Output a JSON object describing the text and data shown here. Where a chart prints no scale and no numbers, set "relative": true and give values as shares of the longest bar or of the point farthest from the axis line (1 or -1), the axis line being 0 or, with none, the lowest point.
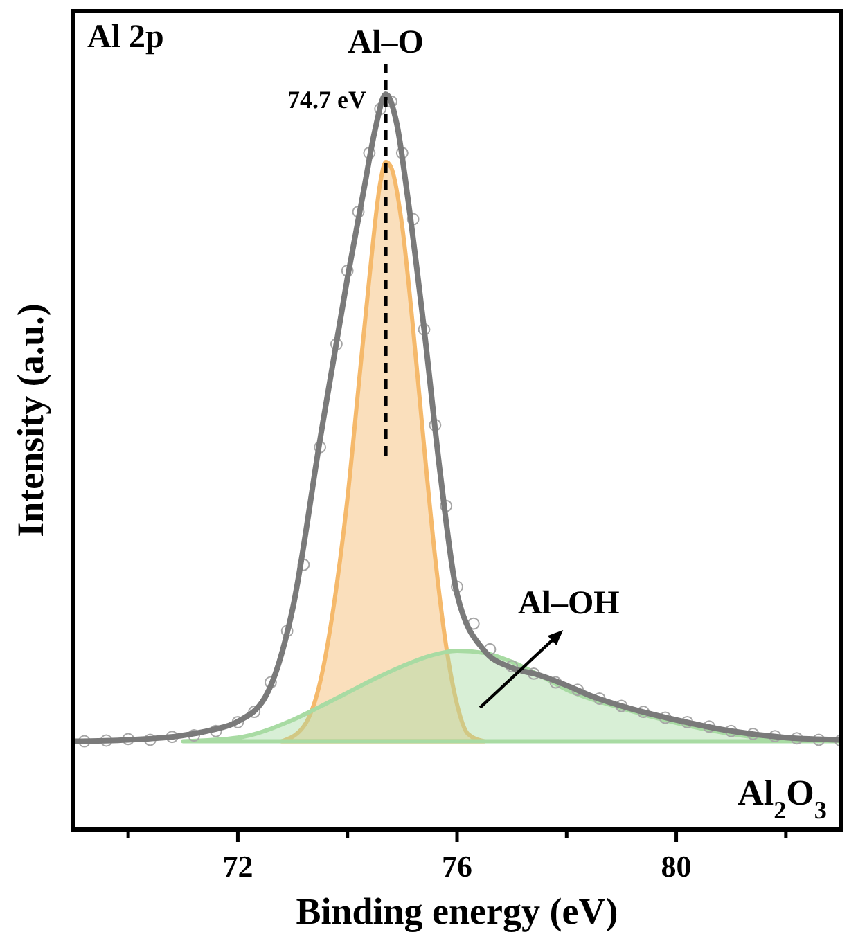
{
  "chart_data": {
    "type": "line",
    "relative": true,
    "xlabel": "Binding energy (eV)",
    "ylabel": "Intensity (a.u.)",
    "xlim": [
      69,
      83
    ],
    "xticks": [
      {
        "value": 70,
        "label": null
      },
      72,
      {
        "value": 74,
        "label": null
      },
      76,
      {
        "value": 78,
        "label": null
      },
      80,
      {
        "value": 82,
        "label": null
      }
    ],
    "tick_labels": "x",
    "series": [
      {
        "type": "area",
        "color": "#f5b96b",
        "x": [
          72.8,
          73.2,
          73.5,
          73.8,
          74,
          74.2,
          74.4,
          74.6,
          74.7,
          74.8,
          75,
          75.2,
          75.4,
          75.6,
          75.8,
          76,
          76.2,
          76.5
        ],
        "values": [
          0.12,
          0.14,
          0.2,
          0.33,
          0.45,
          0.6,
          0.75,
          0.88,
          0.908,
          0.9,
          0.82,
          0.68,
          0.52,
          0.37,
          0.25,
          0.17,
          0.13,
          0.12
        ]
      },
      {
        "type": "area",
        "color": "#a8dba3",
        "x": [
          71,
          72,
          73,
          73.5,
          74,
          74.5,
          75,
          75.5,
          76,
          76.5,
          77,
          77.5,
          78,
          79,
          80,
          81,
          82,
          83
        ],
        "values": [
          0.12,
          0.125,
          0.149,
          0.167,
          0.186,
          0.205,
          0.222,
          0.236,
          0.243,
          0.24,
          0.228,
          0.21,
          0.19,
          0.165,
          0.145,
          0.13,
          0.122,
          0.12
        ]
      },
      {
        "type": "scatter",
        "color": "#a6a6a6",
        "marker": "circle",
        "x": [
          69.2,
          69.6,
          70,
          70.4,
          70.8,
          71.2,
          71.6,
          72,
          72.3,
          72.6,
          72.9,
          73.2,
          73.5,
          73.8,
          74,
          74.2,
          74.4,
          74.6,
          74.8,
          75,
          75.2,
          75.4,
          75.6,
          75.8,
          76,
          76.3,
          76.6,
          77,
          77.4,
          77.8,
          78.2,
          78.6,
          79,
          79.4,
          79.8,
          80.2,
          80.6,
          81,
          81.4,
          81.8,
          82.2,
          82.6,
          83
        ],
        "values": [
          0.12,
          0.121,
          0.123,
          0.122,
          0.126,
          0.128,
          0.134,
          0.146,
          0.16,
          0.2,
          0.27,
          0.36,
          0.52,
          0.66,
          0.76,
          0.84,
          0.92,
          0.98,
          0.99,
          0.92,
          0.83,
          0.68,
          0.55,
          0.44,
          0.33,
          0.28,
          0.245,
          0.222,
          0.212,
          0.2,
          0.19,
          0.178,
          0.168,
          0.16,
          0.152,
          0.146,
          0.14,
          0.134,
          0.13,
          0.127,
          0.124,
          0.122,
          0.121
        ]
      },
      {
        "color": "#7a7a7a",
        "x": [
          69,
          70,
          71,
          71.5,
          72,
          72.5,
          73,
          73.5,
          74,
          74.3,
          74.5,
          74.7,
          74.9,
          75.1,
          75.4,
          75.7,
          76,
          76.5,
          77,
          77.5,
          78,
          78.5,
          79,
          80,
          81,
          82,
          83
        ],
        "values": [
          0.12,
          0.122,
          0.128,
          0.135,
          0.147,
          0.18,
          0.3,
          0.53,
          0.75,
          0.87,
          0.95,
          1,
          0.96,
          0.86,
          0.68,
          0.48,
          0.32,
          0.243,
          0.22,
          0.21,
          0.196,
          0.18,
          0.168,
          0.149,
          0.134,
          0.125,
          0.122
        ]
      }
    ],
    "ref_lines": [
      {
        "axis": "x",
        "value": 74.7,
        "label": "74.7 eV",
        "color": "#000000",
        "line_style": "dashed"
      }
    ],
    "annotations": [
      "Al 2p",
      "Al–O",
      "Al–OH",
      "Al$_{2}$O$_{3}$"
    ]
  }
}
